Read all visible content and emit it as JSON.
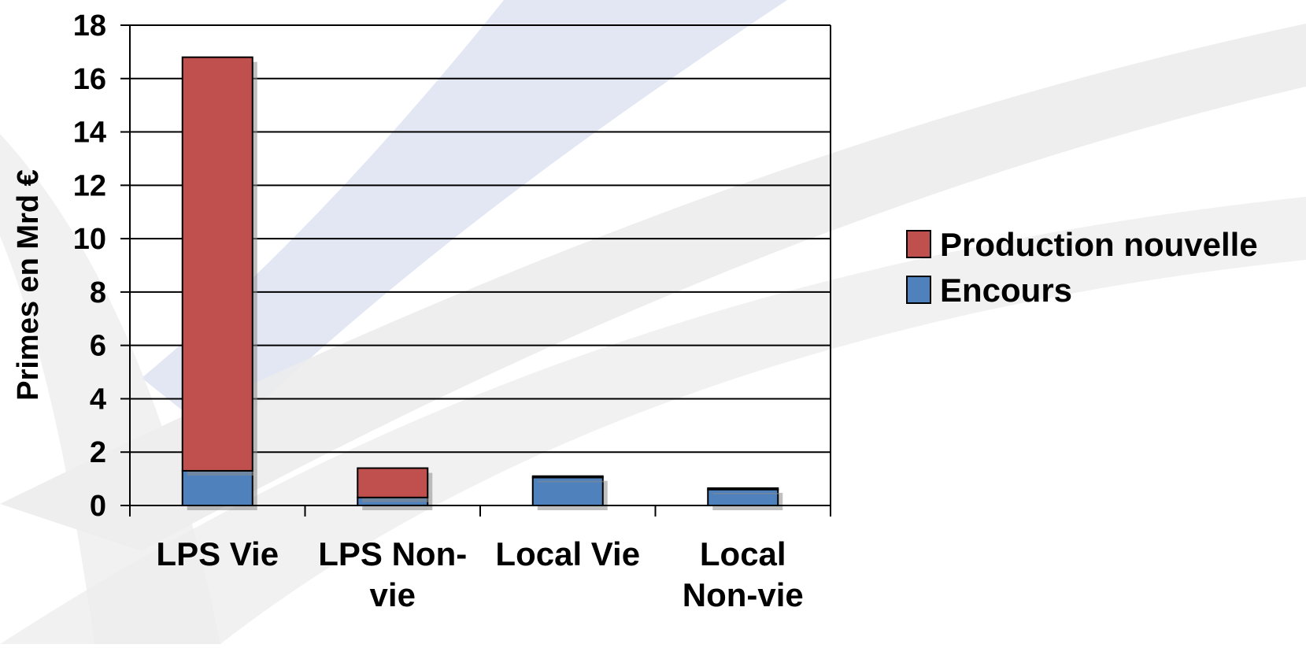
{
  "chart_data": {
    "type": "bar",
    "stacked": true,
    "categories": [
      "LPS Vie",
      "LPS Non-vie",
      "Local Vie",
      "Local Non-vie"
    ],
    "category_lines": [
      [
        "LPS Vie"
      ],
      [
        "LPS Non-",
        "vie"
      ],
      [
        "Local Vie"
      ],
      [
        "Local",
        "Non-vie"
      ]
    ],
    "series": [
      {
        "name": "Encours",
        "values": [
          1.3,
          0.3,
          1.05,
          0.6
        ],
        "color": "#4f81bd"
      },
      {
        "name": "Production nouvelle",
        "values": [
          15.5,
          1.1,
          0.05,
          0.05
        ],
        "color": "#c0504d"
      }
    ],
    "legend_order": [
      "Production nouvelle",
      "Encours"
    ],
    "title": "",
    "xlabel": "",
    "ylabel": "Primes en Mrd €",
    "ylim": [
      0,
      18
    ],
    "yticks": [
      0,
      2,
      4,
      6,
      8,
      10,
      12,
      14,
      16,
      18
    ],
    "grid": true,
    "legend_position": "right"
  }
}
